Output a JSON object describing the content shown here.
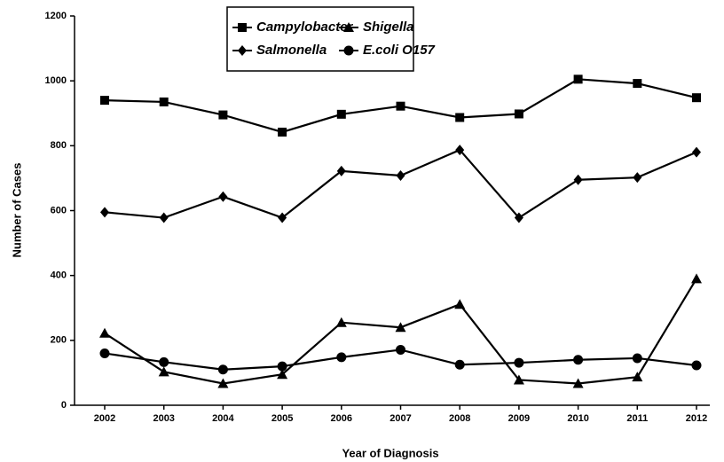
{
  "chart_data": {
    "type": "line",
    "x_label": "Year of Diagnosis",
    "y_label": "Number of Cases",
    "categories": [
      "2002",
      "2003",
      "2004",
      "2005",
      "2006",
      "2007",
      "2008",
      "2009",
      "2010",
      "2011",
      "2012"
    ],
    "series": [
      {
        "name": "Campylobacter",
        "color": "#000000",
        "marker": "square",
        "values": [
          940,
          935,
          895,
          842,
          897,
          922,
          887,
          898,
          1005,
          992,
          948
        ]
      },
      {
        "name": "Salmonella",
        "color": "#000000",
        "marker": "diamond",
        "values": [
          595,
          578,
          643,
          578,
          722,
          708,
          787,
          578,
          695,
          702,
          780
        ]
      },
      {
        "name": "Shigella",
        "color": "#000000",
        "marker": "triangle",
        "values": [
          222,
          103,
          67,
          95,
          255,
          240,
          311,
          78,
          67,
          87,
          390
        ]
      },
      {
        "name": "E.coli O157",
        "color": "#000000",
        "marker": "circle",
        "values": [
          160,
          133,
          110,
          120,
          148,
          171,
          125,
          131,
          140,
          145,
          123
        ]
      }
    ],
    "ylim": [
      0,
      1200
    ],
    "yticks": [
      0,
      200,
      400,
      600,
      800,
      1000,
      1200
    ],
    "grid": false
  }
}
